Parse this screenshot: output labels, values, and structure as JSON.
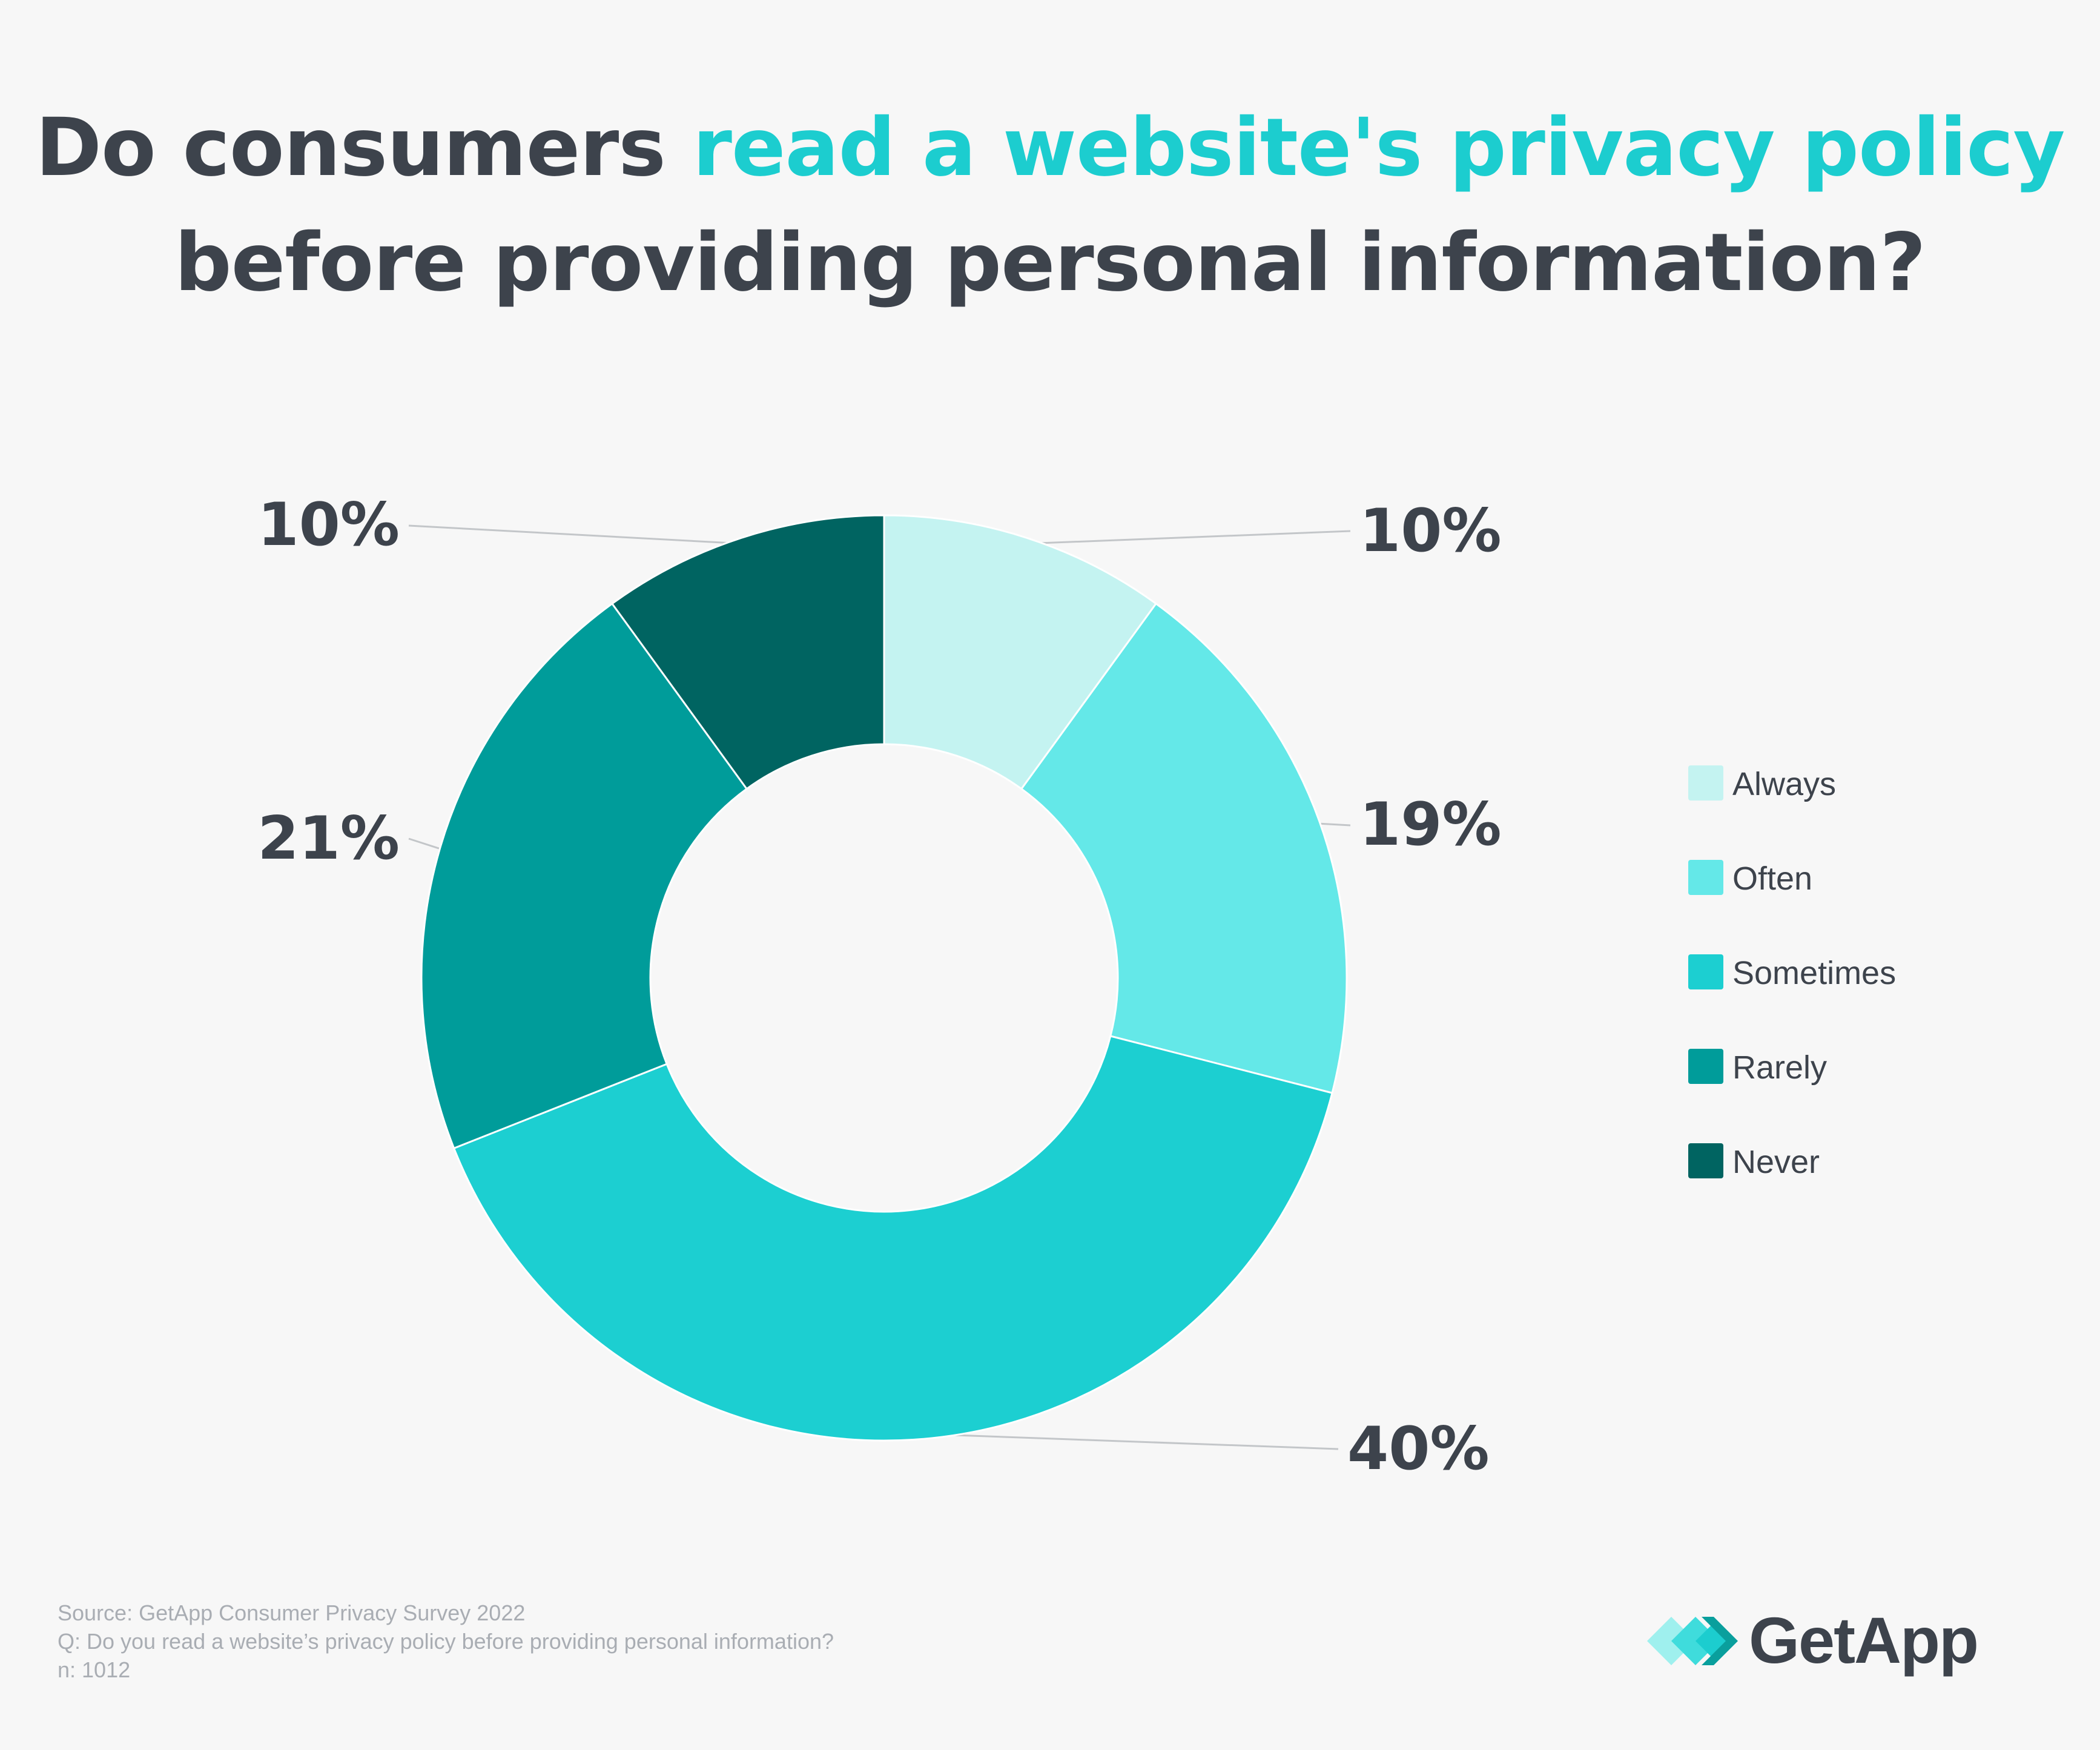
{
  "title": {
    "line1_prefix": "Do consumers ",
    "line1_highlight": "read a website's privacy policy",
    "line2": "before providing personal information?",
    "highlight_color": "#1ccdcf",
    "text_color": "#3d434c"
  },
  "chart_data": {
    "type": "pie",
    "variant": "donut",
    "categories": [
      "Always",
      "Often",
      "Sometimes",
      "Rarely",
      "Never"
    ],
    "values": [
      10,
      19,
      40,
      21,
      10
    ],
    "labels": [
      "10%",
      "19%",
      "40%",
      "21%",
      "10%"
    ],
    "unit": "%",
    "colors": [
      "#c4f3f1",
      "#64e8e8",
      "#1ccfd1",
      "#009c9a",
      "#006461"
    ],
    "legend_position": "right",
    "start_angle": "top",
    "direction": "clockwise"
  },
  "footer": {
    "source": "Source: GetApp Consumer Privacy Survey 2022",
    "question": "Q: Do you read a website’s privacy policy before providing personal information?",
    "sample": "n: 1012"
  },
  "logo": {
    "text": "GetApp",
    "icon": "getapp-chevrons-icon"
  }
}
